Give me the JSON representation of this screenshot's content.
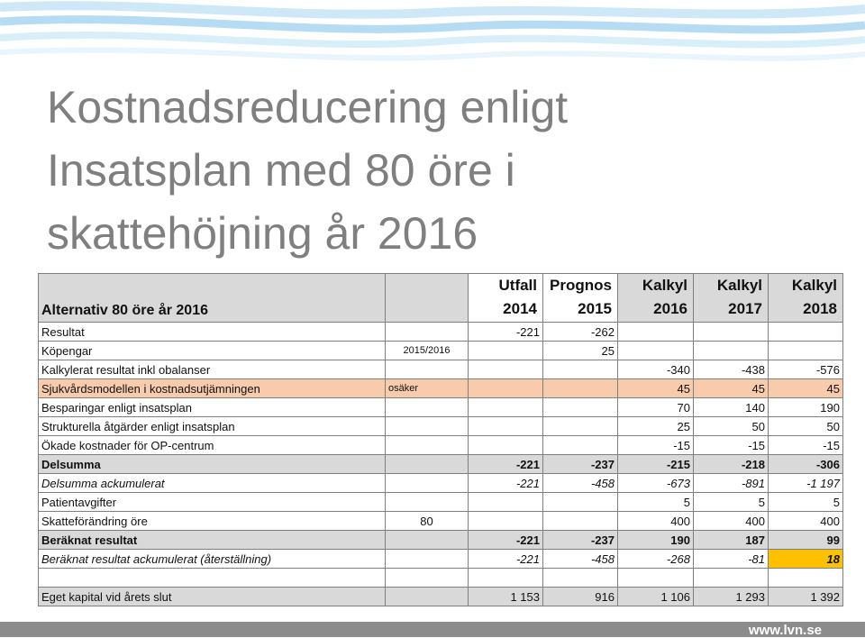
{
  "title": "Kostnadsreducering enligt Insatsplan med 80 öre i skattehöjning år 2016",
  "table": {
    "header": {
      "label": "Alternativ 80 öre år 2016",
      "columns": [
        {
          "line1": "Utfall",
          "line2": "2014"
        },
        {
          "line1": "Prognos",
          "line2": "2015"
        },
        {
          "line1": "Kalkyl",
          "line2": "2016"
        },
        {
          "line1": "Kalkyl",
          "line2": "2017"
        },
        {
          "line1": "Kalkyl",
          "line2": "2018"
        }
      ]
    },
    "rows": [
      {
        "label": "Resultat",
        "note": "",
        "values": [
          "-221",
          "-262",
          "",
          "",
          ""
        ]
      },
      {
        "label": "Köpengar",
        "note": "2015/2016",
        "values": [
          "",
          "25",
          "",
          "",
          ""
        ]
      },
      {
        "label": "Kalkylerat resultat inkl obalanser",
        "note": "",
        "values": [
          "",
          "",
          "-340",
          "-438",
          "-576"
        ]
      },
      {
        "label": "Sjukvårdsmodellen i kostnadsutjämningen",
        "note": "osäker",
        "values": [
          "",
          "",
          "45",
          "45",
          "45"
        ]
      },
      {
        "label": "Besparingar enligt insatsplan",
        "note": "",
        "values": [
          "",
          "",
          "70",
          "140",
          "190"
        ]
      },
      {
        "label": "Strukturella åtgärder enligt insatsplan",
        "note": "",
        "values": [
          "",
          "",
          "25",
          "50",
          "50"
        ]
      },
      {
        "label": "Ökade kostnader för OP-centrum",
        "note": "",
        "values": [
          "",
          "",
          "-15",
          "-15",
          "-15"
        ]
      },
      {
        "label": "Delsumma",
        "note": "",
        "values": [
          "-221",
          "-237",
          "-215",
          "-218",
          "-306"
        ]
      },
      {
        "label": "Delsumma ackumulerat",
        "note": "",
        "values": [
          "-221",
          "-458",
          "-673",
          "-891",
          "-1 197"
        ]
      },
      {
        "label": "Patientavgifter",
        "note": "",
        "values": [
          "",
          "",
          "5",
          "5",
          "5"
        ]
      },
      {
        "label": "Skatteförändring öre",
        "note": "80",
        "values": [
          "",
          "",
          "400",
          "400",
          "400"
        ]
      },
      {
        "label": "Beräknat resultat",
        "note": "",
        "values": [
          "-221",
          "-237",
          "190",
          "187",
          "99"
        ]
      },
      {
        "label": "Beräknat resultat ackumulerat (återställning)",
        "note": "",
        "values": [
          "-221",
          "-458",
          "-268",
          "-81",
          "18"
        ]
      },
      {
        "label": "Eget kapital vid årets slut",
        "note": "",
        "values": [
          "1 153",
          "916",
          "1 106",
          "1 293",
          "1 392"
        ]
      }
    ]
  },
  "footer": {
    "site": "www.lvn.se"
  },
  "colors": {
    "grey": "#d9d9d9",
    "peach": "#f8cbad",
    "highlight": "#ffc000",
    "title": "#7f7f7f"
  }
}
